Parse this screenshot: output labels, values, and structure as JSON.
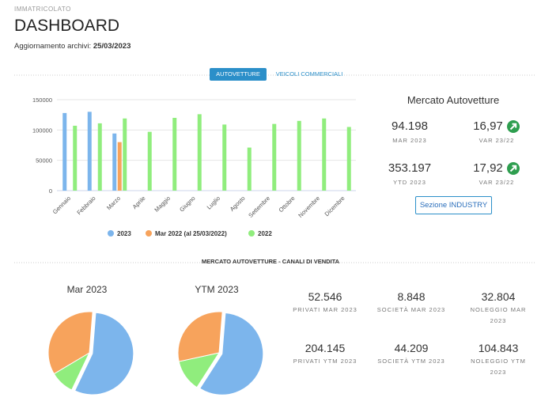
{
  "header": {
    "section": "IMMATRICOLATO",
    "title": "DASHBOARD",
    "update_label": "Aggiornamento archivi:",
    "update_date": "25/03/2023"
  },
  "tabs": [
    "AUTOVETTURE",
    "VEICOLI COMMERCIALI"
  ],
  "panel": {
    "title": "Mercato Autovetture",
    "kpis": [
      {
        "value": "94.198",
        "label": "MAR 2023"
      },
      {
        "value": "16,97",
        "label": "VAR 23/22"
      },
      {
        "value": "353.197",
        "label": "YTD 2023"
      },
      {
        "value": "17,92",
        "label": "VAR 23/22"
      }
    ],
    "button": "Sezione INDUSTRY"
  },
  "section_title": "MERCATO AUTOVETTURE - CANALI DI VENDITA",
  "chart_data": [
    {
      "type": "bar",
      "categories": [
        "Gennaio",
        "Febbraio",
        "Marzo",
        "Aprile",
        "Maggio",
        "Giugno",
        "Luglio",
        "Agosto",
        "Settembre",
        "Ottobre",
        "Novembre",
        "Dicembre"
      ],
      "series": [
        {
          "name": "2023",
          "color": "#7cb5ec",
          "values": [
            128000,
            130000,
            94198,
            null,
            null,
            null,
            null,
            null,
            null,
            null,
            null,
            null
          ]
        },
        {
          "name": "Mar 2022 (al 25/03/2022)",
          "color": "#f7a35c",
          "values": [
            null,
            null,
            80000,
            null,
            null,
            null,
            null,
            null,
            null,
            null,
            null,
            null
          ]
        },
        {
          "name": "2022",
          "color": "#90ed7d",
          "values": [
            107000,
            111000,
            119000,
            97000,
            120000,
            126000,
            109000,
            71000,
            110000,
            115000,
            119000,
            105000
          ]
        }
      ],
      "ylim": [
        0,
        150000
      ],
      "yticks": [
        0,
        50000,
        100000,
        150000
      ],
      "grid": true,
      "legend": "bottom"
    },
    {
      "type": "pie",
      "title": "Mar 2023",
      "categories": [
        "PRIVATI MAR 2023",
        "SOCIETÀ MAR 2023",
        "NOLEGGIO MAR 2023"
      ],
      "values": [
        52546,
        8848,
        32804
      ],
      "value_labels": [
        "52.546",
        "8.848",
        "32.804"
      ],
      "colors": [
        "#7cb5ec",
        "#90ed7d",
        "#f7a35c"
      ]
    },
    {
      "type": "pie",
      "title": "YTM 2023",
      "categories": [
        "PRIVATI YTM 2023",
        "SOCIETÀ YTM 2023",
        "NOLEGGIO YTM 2023"
      ],
      "values": [
        204145,
        44209,
        104843
      ],
      "value_labels": [
        "204.145",
        "44.209",
        "104.843"
      ],
      "colors": [
        "#7cb5ec",
        "#90ed7d",
        "#f7a35c"
      ]
    }
  ]
}
